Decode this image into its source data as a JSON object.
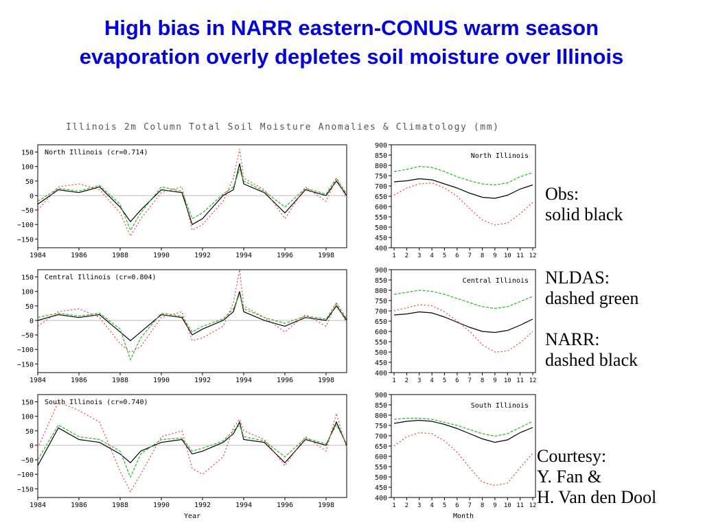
{
  "slide": {
    "title_line1": "High bias in NARR eastern-CONUS warm season",
    "title_line2": "evaporation overly depletes soil moisture over Illinois",
    "title_color": "#0000ee",
    "figure_title": "Illinois 2m Column Total Soil Moisture Anomalies & Climatology (mm)"
  },
  "legend": {
    "obs_label": "Obs:",
    "obs_desc": "solid black",
    "nldas_label": "NLDAS:",
    "nldas_desc": "dashed green",
    "narr_label": "NARR:",
    "narr_desc": "dashed black",
    "courtesy_1": "Courtesy:",
    "courtesy_2": "Y. Fan &",
    "courtesy_3": "H. Van den Dool"
  },
  "colors": {
    "obs": "#000000",
    "nldas": "#22bb22",
    "narr": "#ff3333"
  },
  "chart_data": [
    {
      "type": "line",
      "title": "North Illinois (cr=0.714)",
      "x_ticks": [
        "1984",
        "1986",
        "1988",
        "1990",
        "1992",
        "1994",
        "1996",
        "1998"
      ],
      "y_ticks": [
        "150",
        "100",
        "50",
        "0",
        "−50",
        "−100",
        "−150"
      ],
      "xlim": [
        1984,
        1999
      ],
      "ylim": [
        -180,
        175
      ],
      "series": [
        {
          "name": "Obs",
          "x": [
            1984,
            1985,
            1986,
            1987,
            1988,
            1988.5,
            1989,
            1990,
            1991,
            1991.5,
            1992,
            1993,
            1993.5,
            1993.8,
            1994,
            1995,
            1996,
            1997,
            1998,
            1998.5,
            1999
          ],
          "values": [
            -30,
            20,
            10,
            30,
            -40,
            -90,
            -50,
            20,
            10,
            -100,
            -80,
            0,
            20,
            110,
            40,
            10,
            -60,
            20,
            0,
            50,
            0
          ]
        },
        {
          "name": "NLDAS",
          "x": [
            1984,
            1985,
            1986,
            1987,
            1988,
            1988.5,
            1989,
            1990,
            1991,
            1991.5,
            1992,
            1993,
            1993.5,
            1993.8,
            1994,
            1995,
            1996,
            1997,
            1998,
            1998.5,
            1999
          ],
          "values": [
            -20,
            25,
            15,
            35,
            -30,
            -120,
            -60,
            30,
            15,
            -80,
            -60,
            5,
            30,
            90,
            50,
            15,
            -40,
            25,
            5,
            60,
            5
          ]
        },
        {
          "name": "NARR",
          "x": [
            1984,
            1985,
            1986,
            1987,
            1988,
            1988.5,
            1989,
            1990,
            1991,
            1991.5,
            1992,
            1993,
            1993.5,
            1993.8,
            1994,
            1995,
            1996,
            1997,
            1998,
            1998.5,
            1999
          ],
          "values": [
            -50,
            30,
            40,
            20,
            -60,
            -140,
            -80,
            10,
            30,
            -120,
            -100,
            -20,
            60,
            160,
            60,
            20,
            -80,
            30,
            -20,
            60,
            -10
          ]
        }
      ]
    },
    {
      "type": "line",
      "title": "North Illinois",
      "xlabel": "",
      "x_ticks": [
        "1",
        "2",
        "3",
        "4",
        "5",
        "6",
        "7",
        "8",
        "9",
        "10",
        "11",
        "12"
      ],
      "y_ticks": [
        "900",
        "850",
        "800",
        "750",
        "700",
        "650",
        "600",
        "550",
        "500",
        "450",
        "400"
      ],
      "ylim": [
        400,
        900
      ],
      "categories": [
        1,
        2,
        3,
        4,
        5,
        6,
        7,
        8,
        9,
        10,
        11,
        12
      ],
      "series": [
        {
          "name": "Obs",
          "values": [
            720,
            725,
            735,
            730,
            710,
            690,
            665,
            645,
            640,
            655,
            685,
            705
          ]
        },
        {
          "name": "NLDAS",
          "values": [
            770,
            780,
            795,
            790,
            770,
            745,
            725,
            710,
            705,
            715,
            745,
            765
          ]
        },
        {
          "name": "NARR",
          "values": [
            655,
            690,
            710,
            715,
            690,
            650,
            590,
            535,
            510,
            520,
            565,
            620
          ]
        }
      ]
    },
    {
      "type": "line",
      "title": "Central Illinois (cr=0.804)",
      "x_ticks": [
        "1984",
        "1986",
        "1988",
        "1990",
        "1992",
        "1994",
        "1996",
        "1998"
      ],
      "y_ticks": [
        "150",
        "100",
        "50",
        "0",
        "−50",
        "−100",
        "−150"
      ],
      "xlim": [
        1984,
        1999
      ],
      "ylim": [
        -180,
        175
      ],
      "series": [
        {
          "name": "Obs",
          "x": [
            1984,
            1985,
            1986,
            1987,
            1988,
            1988.5,
            1989,
            1990,
            1991,
            1991.5,
            1992,
            1993,
            1993.5,
            1993.8,
            1994,
            1995,
            1996,
            1997,
            1998,
            1998.5,
            1999
          ],
          "values": [
            0,
            20,
            10,
            20,
            -40,
            -70,
            -40,
            20,
            10,
            -50,
            -30,
            0,
            30,
            100,
            30,
            0,
            -20,
            10,
            0,
            50,
            0
          ]
        },
        {
          "name": "NLDAS",
          "x": [
            1984,
            1985,
            1986,
            1987,
            1988,
            1988.5,
            1989,
            1990,
            1991,
            1991.5,
            1992,
            1993,
            1993.5,
            1993.8,
            1994,
            1995,
            1996,
            1997,
            1998,
            1998.5,
            1999
          ],
          "values": [
            10,
            25,
            15,
            25,
            -30,
            -135,
            -60,
            25,
            15,
            -40,
            -20,
            5,
            40,
            90,
            40,
            10,
            -10,
            15,
            5,
            60,
            5
          ]
        },
        {
          "name": "NARR",
          "x": [
            1984,
            1985,
            1986,
            1987,
            1988,
            1988.5,
            1989,
            1990,
            1991,
            1991.5,
            1992,
            1993,
            1993.5,
            1993.8,
            1994,
            1995,
            1996,
            1997,
            1998,
            1998.5,
            1999
          ],
          "values": [
            -20,
            30,
            40,
            10,
            -80,
            -110,
            -90,
            10,
            30,
            -70,
            -60,
            -20,
            60,
            175,
            50,
            10,
            -40,
            20,
            -20,
            60,
            -10
          ]
        }
      ]
    },
    {
      "type": "line",
      "title": "Central Illinois",
      "xlabel": "",
      "x_ticks": [
        "1",
        "2",
        "3",
        "4",
        "5",
        "6",
        "7",
        "8",
        "9",
        "10",
        "11",
        "12"
      ],
      "y_ticks": [
        "900",
        "850",
        "800",
        "750",
        "700",
        "650",
        "600",
        "550",
        "500",
        "450",
        "400"
      ],
      "ylim": [
        400,
        900
      ],
      "categories": [
        1,
        2,
        3,
        4,
        5,
        6,
        7,
        8,
        9,
        10,
        11,
        12
      ],
      "series": [
        {
          "name": "Obs",
          "values": [
            680,
            685,
            695,
            690,
            670,
            645,
            620,
            600,
            595,
            605,
            630,
            660
          ]
        },
        {
          "name": "NLDAS",
          "values": [
            780,
            790,
            800,
            795,
            780,
            760,
            740,
            720,
            712,
            720,
            745,
            770
          ]
        },
        {
          "name": "NARR",
          "values": [
            700,
            715,
            730,
            725,
            695,
            650,
            600,
            535,
            500,
            505,
            545,
            600
          ]
        }
      ]
    },
    {
      "type": "line",
      "title": "South Illinois (cr=0.740)",
      "xlabel": "Year",
      "x_ticks": [
        "1984",
        "1986",
        "1988",
        "1990",
        "1992",
        "1994",
        "1996",
        "1998"
      ],
      "y_ticks": [
        "150",
        "100",
        "50",
        "0",
        "−50",
        "−100",
        "−150"
      ],
      "xlim": [
        1984,
        1999
      ],
      "ylim": [
        -180,
        175
      ],
      "series": [
        {
          "name": "Obs",
          "x": [
            1984,
            1985,
            1986,
            1987,
            1988,
            1988.5,
            1989,
            1990,
            1991,
            1991.5,
            1992,
            1993,
            1993.5,
            1993.8,
            1994,
            1995,
            1996,
            1997,
            1998,
            1998.5,
            1999
          ],
          "values": [
            -70,
            60,
            20,
            10,
            -30,
            -60,
            -20,
            10,
            20,
            -30,
            -20,
            10,
            40,
            80,
            20,
            10,
            -60,
            20,
            0,
            80,
            0
          ]
        },
        {
          "name": "NLDAS",
          "x": [
            1984,
            1985,
            1986,
            1987,
            1988,
            1988.5,
            1989,
            1990,
            1991,
            1991.5,
            1992,
            1993,
            1993.5,
            1993.8,
            1994,
            1995,
            1996,
            1997,
            1998,
            1998.5,
            1999
          ],
          "values": [
            -50,
            70,
            30,
            20,
            -20,
            -110,
            -30,
            20,
            25,
            -20,
            -10,
            15,
            50,
            70,
            30,
            15,
            -40,
            25,
            5,
            70,
            5
          ]
        },
        {
          "name": "NARR",
          "x": [
            1984,
            1985,
            1986,
            1987,
            1988,
            1988.5,
            1989,
            1990,
            1991,
            1991.5,
            1992,
            1993,
            1993.5,
            1993.8,
            1994,
            1995,
            1996,
            1997,
            1998,
            1998.5,
            1999
          ],
          "values": [
            -10,
            150,
            120,
            80,
            -90,
            -160,
            -100,
            30,
            50,
            -80,
            -100,
            -40,
            60,
            90,
            50,
            20,
            -70,
            30,
            -20,
            110,
            -10
          ]
        }
      ]
    },
    {
      "type": "line",
      "title": "South Illinois",
      "xlabel": "Month",
      "x_ticks": [
        "1",
        "2",
        "3",
        "4",
        "5",
        "6",
        "7",
        "8",
        "9",
        "10",
        "11",
        "12"
      ],
      "y_ticks": [
        "900",
        "850",
        "800",
        "750",
        "700",
        "650",
        "600",
        "550",
        "500",
        "450",
        "400"
      ],
      "ylim": [
        400,
        900
      ],
      "categories": [
        1,
        2,
        3,
        4,
        5,
        6,
        7,
        8,
        9,
        10,
        11,
        12
      ],
      "series": [
        {
          "name": "Obs",
          "values": [
            760,
            770,
            775,
            770,
            755,
            735,
            710,
            685,
            668,
            680,
            715,
            740
          ]
        },
        {
          "name": "NLDAS",
          "values": [
            780,
            785,
            785,
            780,
            765,
            750,
            730,
            710,
            698,
            710,
            740,
            770
          ]
        },
        {
          "name": "NARR",
          "values": [
            650,
            695,
            715,
            710,
            675,
            620,
            545,
            475,
            458,
            470,
            545,
            615
          ]
        }
      ]
    }
  ]
}
